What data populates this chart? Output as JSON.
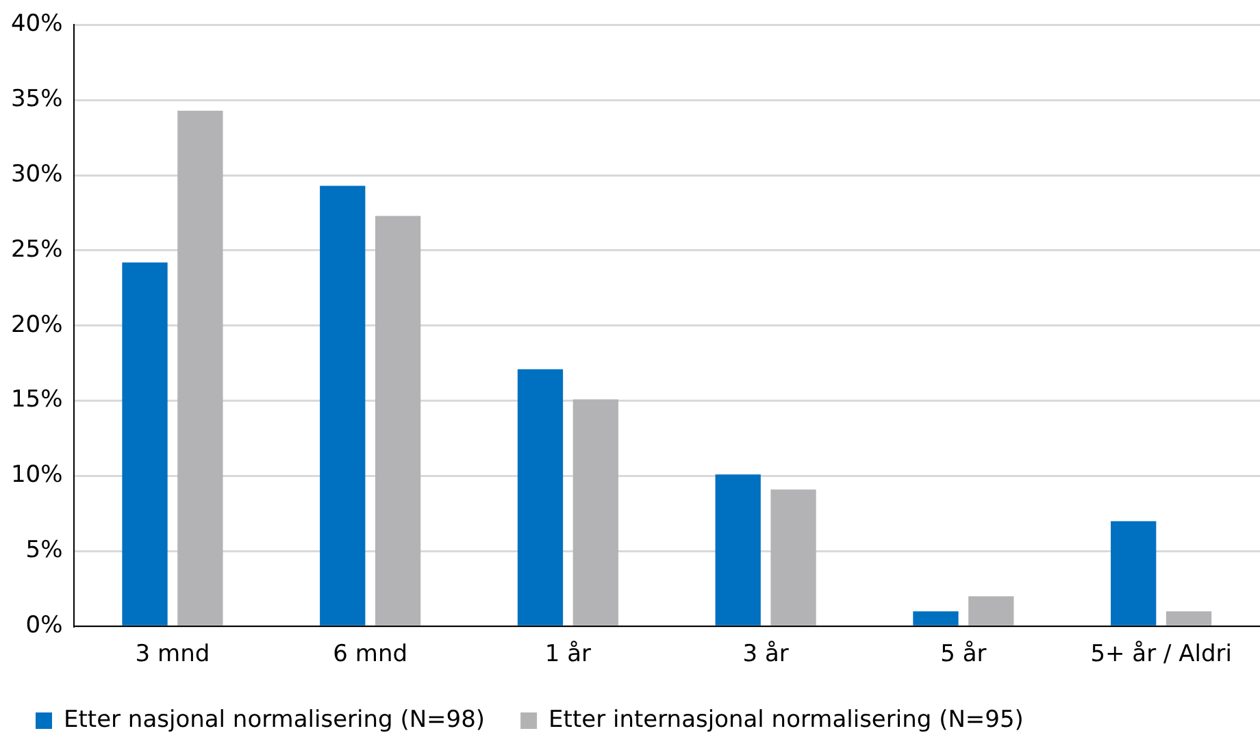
{
  "chart_data": {
    "type": "bar",
    "categories": [
      "3 mnd",
      "6 mnd",
      "1 år",
      "3 år",
      "5 år",
      "5+ år / Aldri"
    ],
    "series": [
      {
        "name": "Etter nasjonal normalisering (N=98)",
        "color": "#0070c0",
        "values": [
          24.2,
          29.3,
          17.1,
          10.1,
          1.0,
          7.0
        ]
      },
      {
        "name": "Etter internasjonal normalisering (N=95)",
        "color": "#b3b3b5",
        "values": [
          34.3,
          27.3,
          15.1,
          9.1,
          2.0,
          1.0
        ]
      }
    ],
    "ylim": [
      0,
      40
    ],
    "yticks": [
      {
        "value": 0,
        "label": "0%"
      },
      {
        "value": 5,
        "label": "5%"
      },
      {
        "value": 10,
        "label": "10%"
      },
      {
        "value": 15,
        "label": "15%"
      },
      {
        "value": 20,
        "label": "20%"
      },
      {
        "value": 25,
        "label": "25%"
      },
      {
        "value": 30,
        "label": "30%"
      },
      {
        "value": 35,
        "label": "35%"
      },
      {
        "value": 40,
        "label": "40%"
      }
    ],
    "grid": "y",
    "legend": "bottom"
  }
}
